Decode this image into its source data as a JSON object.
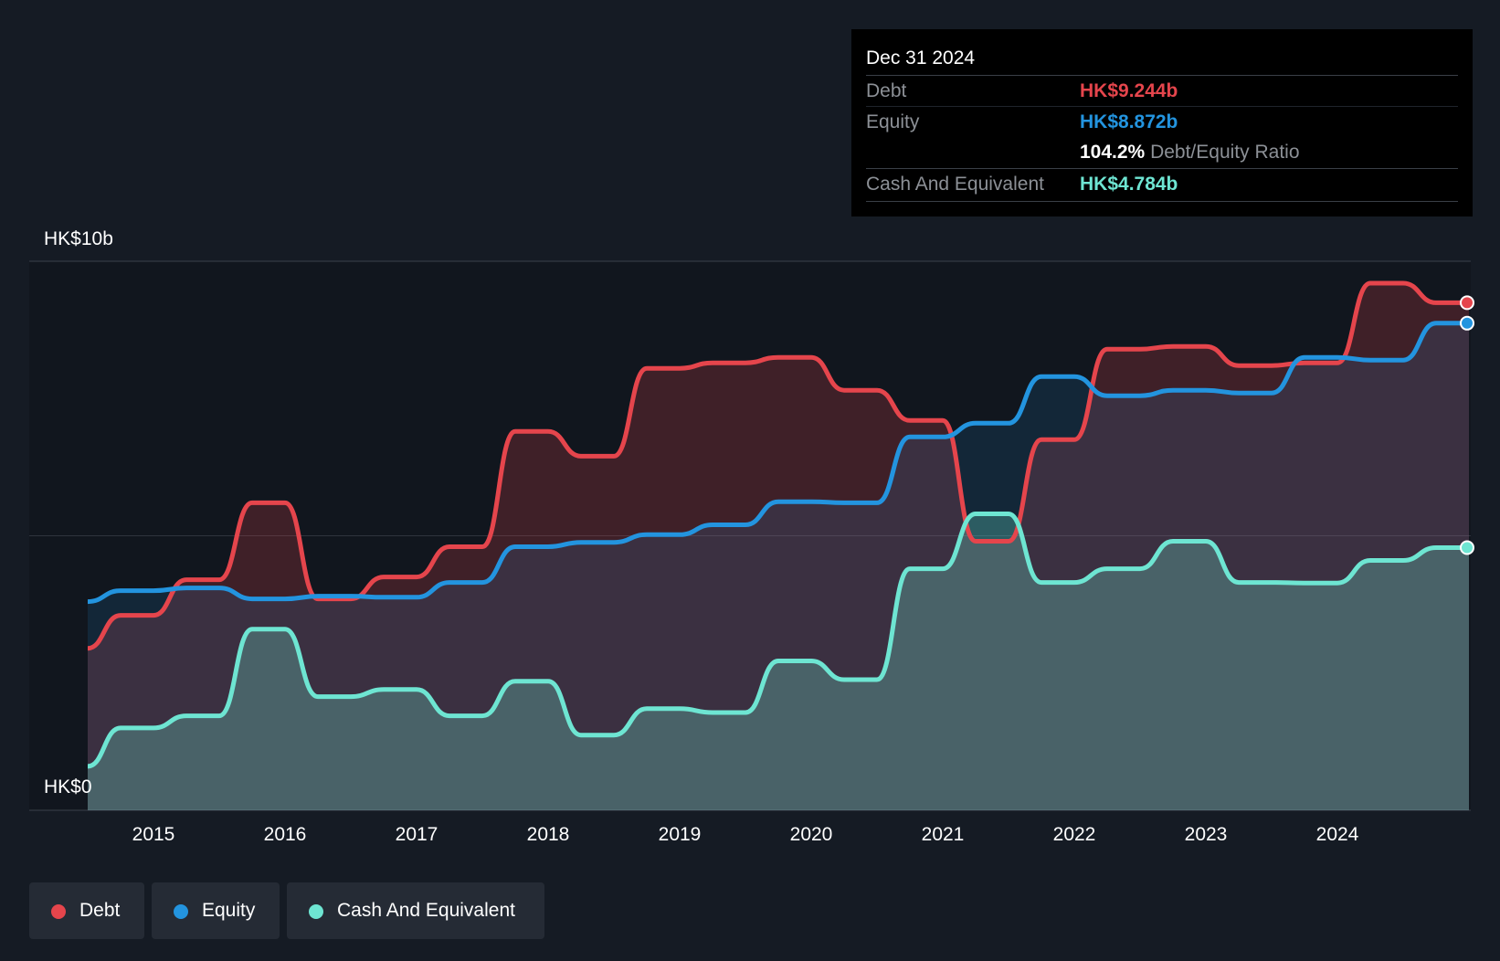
{
  "tooltip": {
    "date": "Dec 31 2024",
    "debt_label": "Debt",
    "debt_value": "HK$9.244b",
    "equity_label": "Equity",
    "equity_value": "HK$8.872b",
    "ratio_value": "104.2%",
    "ratio_label": "Debt/Equity Ratio",
    "cash_label": "Cash And Equivalent",
    "cash_value": "HK$4.784b"
  },
  "legend": {
    "debt": "Debt",
    "equity": "Equity",
    "cash": "Cash And Equivalent"
  },
  "colors": {
    "background": "#151b24",
    "debt": "#e5454c",
    "equity": "#2394df",
    "cash": "#6ee5d2"
  },
  "chart_data": {
    "type": "area",
    "ylim": [
      0,
      10
    ],
    "y_tick_labels": [
      "HK$0",
      "HK$10b"
    ],
    "x_tick_labels": [
      "2015",
      "2016",
      "2017",
      "2018",
      "2019",
      "2020",
      "2021",
      "2022",
      "2023",
      "2024"
    ],
    "x_range": [
      2014.5,
      2025.0
    ],
    "grid": true,
    "series": [
      {
        "name": "Debt",
        "points": [
          [
            2014.5,
            2.95
          ],
          [
            2014.75,
            3.55
          ],
          [
            2015.0,
            3.55
          ],
          [
            2015.25,
            4.2
          ],
          [
            2015.5,
            4.2
          ],
          [
            2015.75,
            5.6
          ],
          [
            2016.0,
            5.6
          ],
          [
            2016.25,
            3.85
          ],
          [
            2016.5,
            3.85
          ],
          [
            2016.75,
            4.25
          ],
          [
            2017.0,
            4.25
          ],
          [
            2017.25,
            4.8
          ],
          [
            2017.5,
            4.8
          ],
          [
            2017.75,
            6.9
          ],
          [
            2018.0,
            6.9
          ],
          [
            2018.25,
            6.45
          ],
          [
            2018.5,
            6.45
          ],
          [
            2018.75,
            8.05
          ],
          [
            2019.0,
            8.05
          ],
          [
            2019.25,
            8.15
          ],
          [
            2019.5,
            8.15
          ],
          [
            2019.75,
            8.25
          ],
          [
            2020.0,
            8.25
          ],
          [
            2020.25,
            7.65
          ],
          [
            2020.5,
            7.65
          ],
          [
            2020.75,
            7.1
          ],
          [
            2021.0,
            7.1
          ],
          [
            2021.25,
            4.9
          ],
          [
            2021.5,
            4.9
          ],
          [
            2021.75,
            6.75
          ],
          [
            2022.0,
            6.75
          ],
          [
            2022.25,
            8.4
          ],
          [
            2022.5,
            8.4
          ],
          [
            2022.75,
            8.45
          ],
          [
            2023.0,
            8.45
          ],
          [
            2023.25,
            8.1
          ],
          [
            2023.5,
            8.1
          ],
          [
            2023.75,
            8.15
          ],
          [
            2024.0,
            8.15
          ],
          [
            2024.25,
            9.6
          ],
          [
            2024.5,
            9.6
          ],
          [
            2024.75,
            9.244
          ],
          [
            2025.0,
            9.244
          ]
        ]
      },
      {
        "name": "Equity",
        "points": [
          [
            2014.5,
            3.8
          ],
          [
            2014.75,
            4.0
          ],
          [
            2015.0,
            4.0
          ],
          [
            2015.25,
            4.05
          ],
          [
            2015.5,
            4.05
          ],
          [
            2015.75,
            3.85
          ],
          [
            2016.0,
            3.85
          ],
          [
            2016.25,
            3.9
          ],
          [
            2016.5,
            3.9
          ],
          [
            2016.75,
            3.88
          ],
          [
            2017.0,
            3.88
          ],
          [
            2017.25,
            4.15
          ],
          [
            2017.5,
            4.15
          ],
          [
            2017.75,
            4.8
          ],
          [
            2018.0,
            4.8
          ],
          [
            2018.25,
            4.88
          ],
          [
            2018.5,
            4.88
          ],
          [
            2018.75,
            5.02
          ],
          [
            2019.0,
            5.02
          ],
          [
            2019.25,
            5.2
          ],
          [
            2019.5,
            5.2
          ],
          [
            2019.75,
            5.62
          ],
          [
            2020.0,
            5.62
          ],
          [
            2020.25,
            5.6
          ],
          [
            2020.5,
            5.6
          ],
          [
            2020.75,
            6.8
          ],
          [
            2021.0,
            6.8
          ],
          [
            2021.25,
            7.05
          ],
          [
            2021.5,
            7.05
          ],
          [
            2021.75,
            7.9
          ],
          [
            2022.0,
            7.9
          ],
          [
            2022.25,
            7.55
          ],
          [
            2022.5,
            7.55
          ],
          [
            2022.75,
            7.65
          ],
          [
            2023.0,
            7.65
          ],
          [
            2023.25,
            7.6
          ],
          [
            2023.5,
            7.6
          ],
          [
            2023.75,
            8.25
          ],
          [
            2024.0,
            8.25
          ],
          [
            2024.25,
            8.2
          ],
          [
            2024.5,
            8.2
          ],
          [
            2024.75,
            8.872
          ],
          [
            2025.0,
            8.872
          ]
        ]
      },
      {
        "name": "Cash And Equivalent",
        "points": [
          [
            2014.5,
            0.8
          ],
          [
            2014.75,
            1.5
          ],
          [
            2015.0,
            1.5
          ],
          [
            2015.25,
            1.72
          ],
          [
            2015.5,
            1.72
          ],
          [
            2015.75,
            3.3
          ],
          [
            2016.0,
            3.3
          ],
          [
            2016.25,
            2.07
          ],
          [
            2016.5,
            2.07
          ],
          [
            2016.75,
            2.2
          ],
          [
            2017.0,
            2.2
          ],
          [
            2017.25,
            1.72
          ],
          [
            2017.5,
            1.72
          ],
          [
            2017.75,
            2.35
          ],
          [
            2018.0,
            2.35
          ],
          [
            2018.25,
            1.37
          ],
          [
            2018.5,
            1.37
          ],
          [
            2018.75,
            1.85
          ],
          [
            2019.0,
            1.85
          ],
          [
            2019.25,
            1.78
          ],
          [
            2019.5,
            1.78
          ],
          [
            2019.75,
            2.72
          ],
          [
            2020.0,
            2.72
          ],
          [
            2020.25,
            2.38
          ],
          [
            2020.5,
            2.38
          ],
          [
            2020.75,
            4.4
          ],
          [
            2021.0,
            4.4
          ],
          [
            2021.25,
            5.4
          ],
          [
            2021.5,
            5.4
          ],
          [
            2021.75,
            4.15
          ],
          [
            2022.0,
            4.15
          ],
          [
            2022.25,
            4.4
          ],
          [
            2022.5,
            4.4
          ],
          [
            2022.75,
            4.9
          ],
          [
            2023.0,
            4.9
          ],
          [
            2023.25,
            4.15
          ],
          [
            2023.5,
            4.15
          ],
          [
            2023.75,
            4.14
          ],
          [
            2024.0,
            4.14
          ],
          [
            2024.25,
            4.55
          ],
          [
            2024.5,
            4.55
          ],
          [
            2024.75,
            4.784
          ],
          [
            2025.0,
            4.784
          ]
        ]
      }
    ]
  }
}
